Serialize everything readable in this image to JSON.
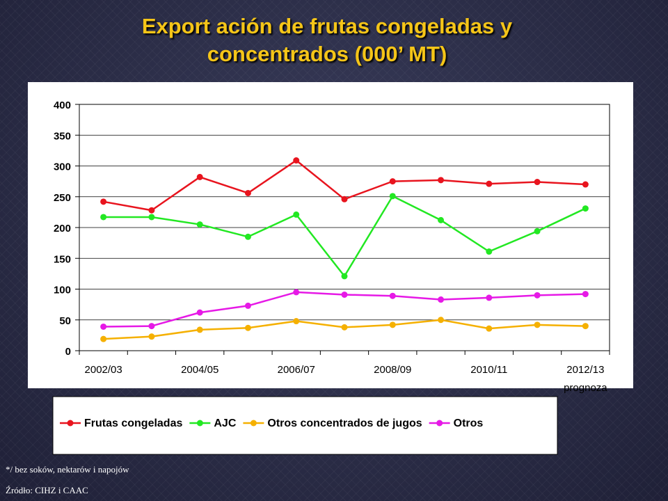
{
  "title_line1": "Export ación de frutas congeladas y",
  "title_line2": "concentrados  (000’ MT)",
  "footnote": "*/ bez soków, nektarów i napojów",
  "source": "Źródło: CIHZ i CAAC",
  "chart_data": {
    "type": "line",
    "title": "Export ación de frutas congeladas y concentrados  (000’ MT)",
    "x_tick_labels": [
      "2002/03",
      "2004/05",
      "2006/07",
      "2008/09",
      "2010/11",
      "2012/13"
    ],
    "x_tick_sublabel": "prognoza",
    "points_count": 11,
    "ylim": [
      0,
      400
    ],
    "y_ticks": [
      0,
      50,
      100,
      150,
      200,
      250,
      300,
      350,
      400
    ],
    "grid": "horizontal",
    "legend_position": "bottom",
    "series": [
      {
        "name": "Frutas congeladas",
        "color": "#e8141e",
        "values": [
          242,
          228,
          282,
          256,
          309,
          246,
          275,
          277,
          271,
          274,
          270
        ]
      },
      {
        "name": "AJC",
        "color": "#22e822",
        "values": [
          217,
          217,
          205,
          185,
          221,
          121,
          251,
          212,
          161,
          194,
          231
        ]
      },
      {
        "name": "Otros concentrados de jugos",
        "color": "#f5b000",
        "values": [
          19,
          23,
          34,
          37,
          48,
          38,
          42,
          50,
          36,
          42,
          40
        ]
      },
      {
        "name": "Otros",
        "color": "#e619e6",
        "values": [
          39,
          40,
          62,
          73,
          95,
          91,
          89,
          83,
          86,
          90,
          92
        ]
      }
    ]
  }
}
